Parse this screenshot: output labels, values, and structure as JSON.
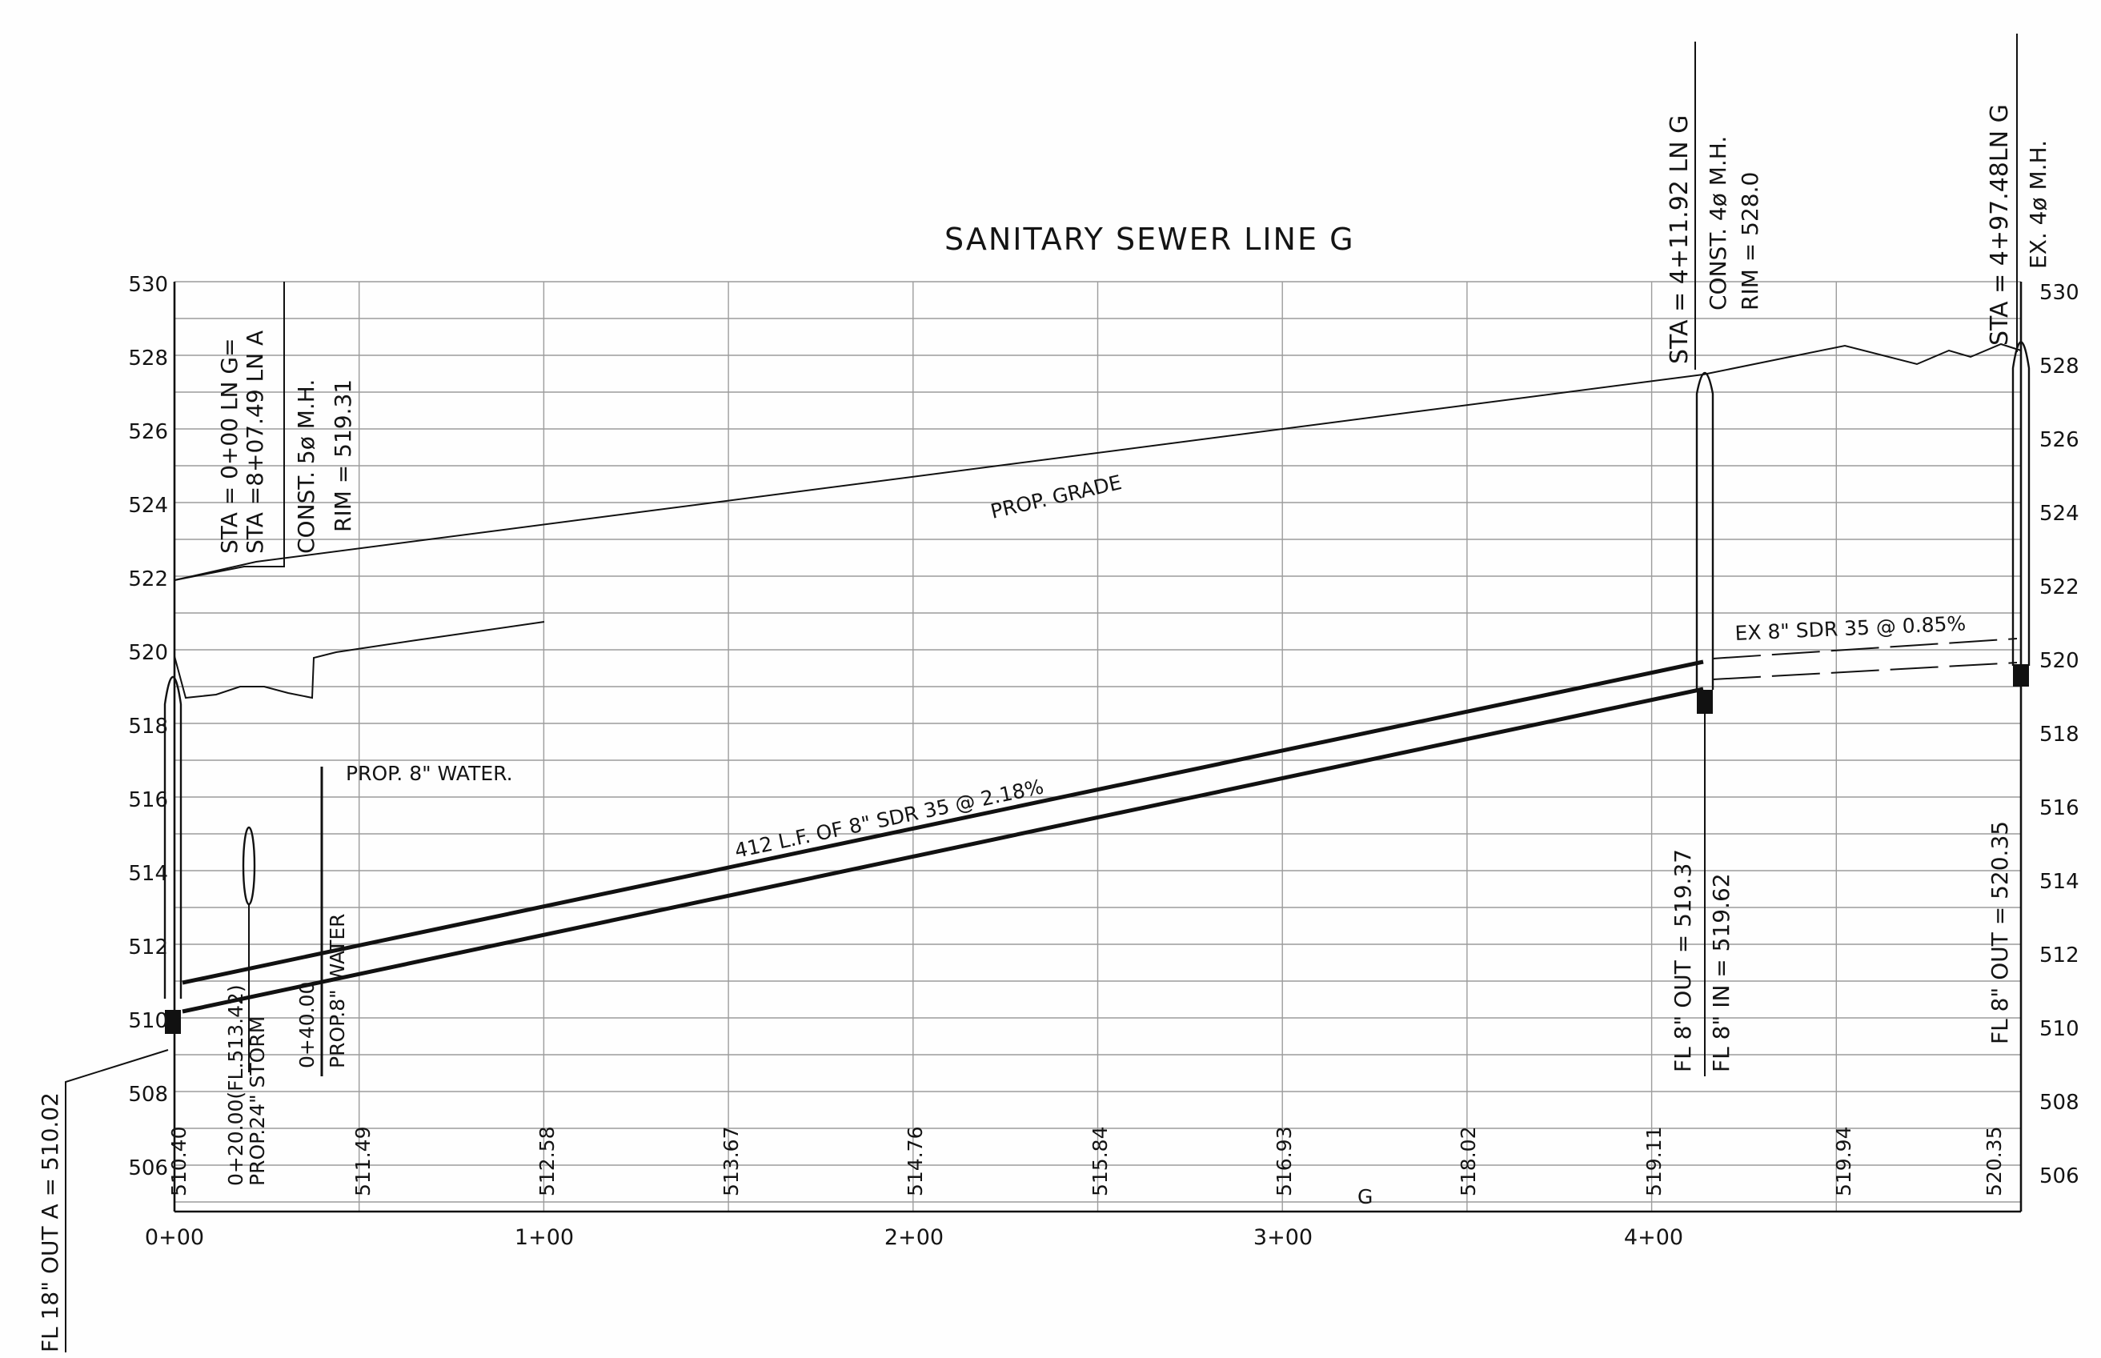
{
  "title": "SANITARY SEWER LINE G",
  "elevations_left": [
    "530",
    "528",
    "526",
    "524",
    "522",
    "520",
    "518",
    "516",
    "514",
    "512",
    "510",
    "508",
    "506"
  ],
  "elevations_right": [
    "530",
    "528",
    "526",
    "524",
    "522",
    "520",
    "518",
    "516",
    "514",
    "512",
    "510",
    "508",
    "506"
  ],
  "stations": [
    "0+00",
    "1+00",
    "2+00",
    "3+00",
    "4+00"
  ],
  "grade_elevations": [
    "510.40",
    "511.49",
    "512.58",
    "513.67",
    "514.76",
    "515.84",
    "516.93",
    "518.02",
    "519.11",
    "519.94",
    "520.35"
  ],
  "mh_start": {
    "sta_line1": "STA   = 0+00 LN G=",
    "sta_line2": "STA   =8+07.49 LN A",
    "const": "CONST. 5ø M.H.",
    "rim": "RIM  =  519.31"
  },
  "mh_mid": {
    "sta": "STA  =  4+11.92 LN G",
    "const": "CONST. 4ø M.H.",
    "rim": "RIM  =  528.0",
    "fl_out": "FL  8\"  OUT  =  519.37",
    "fl_in": "FL  8\"  IN  =  519.62"
  },
  "mh_end": {
    "sta": "STA  =  4+97.48LN G",
    "type": "EX.  4ø M.H.",
    "fl_out": "FL  8\"  OUT  =  520.35"
  },
  "fl_18_out": "FL  18\"  OUT A  =  510.02",
  "labels": {
    "prop_grade": "PROP. GRADE",
    "prop_water": "PROP. 8\" WATER.",
    "pipe": "412 L.F. OF 8\" SDR 35 @ 2.18%",
    "ex_pipe": "EX   8\"  SDR  35  @  0.85%",
    "storm_sta": "0+20.00(FL.513.42)",
    "storm_desc": "PROP.24\" STORM",
    "water_sta": "0+40.00",
    "water_desc": "PROP.8\" WATER",
    "g_mark": "G"
  }
}
